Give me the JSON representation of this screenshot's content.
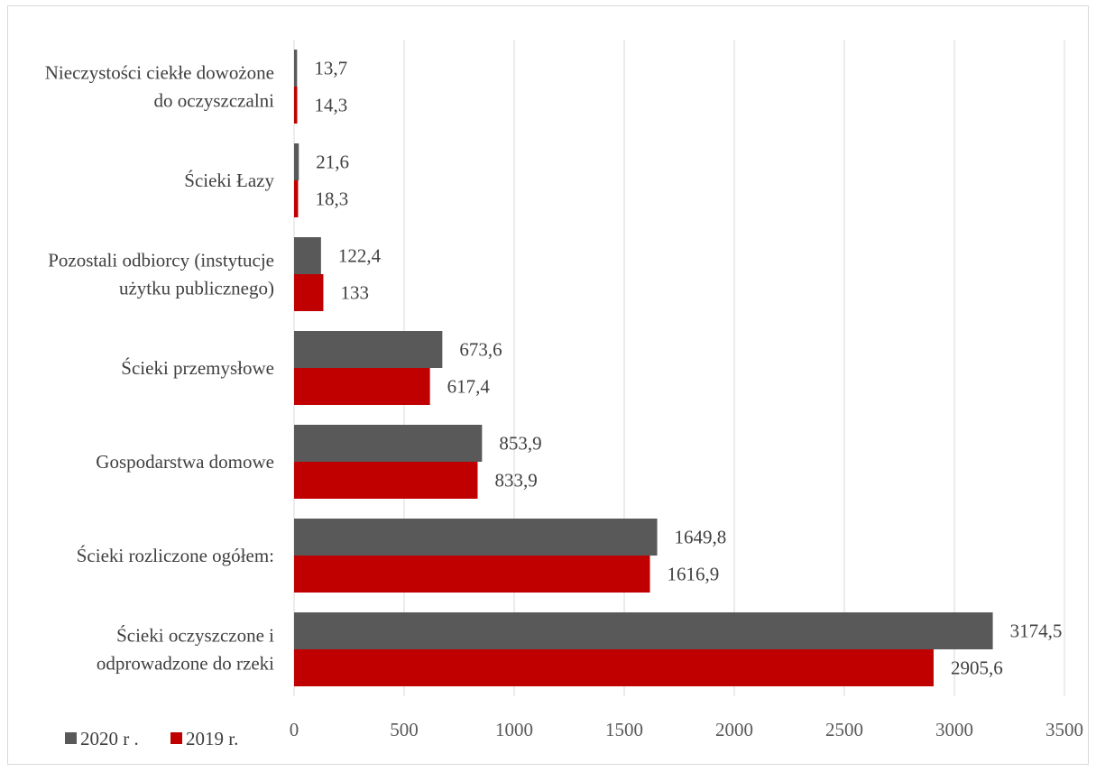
{
  "chart_data": {
    "type": "bar",
    "orientation": "horizontal",
    "categories": [
      [
        "Nieczystości ciekłe dowożone",
        "do oczyszczalni"
      ],
      [
        "Ścieki Łazy"
      ],
      [
        "Pozostali odbiorcy (instytucje",
        "użytku publicznego)"
      ],
      [
        "Ścieki przemysłowe"
      ],
      [
        "Gospodarstwa domowe"
      ],
      [
        "Ścieki rozliczone ogółem:"
      ],
      [
        "Ścieki oczyszczone i",
        "odprowadzone do rzeki"
      ]
    ],
    "series": [
      {
        "name": "2020 r .",
        "color": "#595959",
        "values": [
          13.7,
          21.6,
          122.4,
          673.6,
          853.9,
          1649.8,
          3174.5
        ],
        "labels": [
          "13,7",
          "21,6",
          "122,4",
          "673,6",
          "853,9",
          "1649,8",
          "3174,5"
        ]
      },
      {
        "name": "2019 r.",
        "color": "#c00000",
        "values": [
          14.3,
          18.3,
          133,
          617.4,
          833.9,
          1616.9,
          2905.6
        ],
        "labels": [
          "14,3",
          "18,3",
          "133",
          "617,4",
          "833,9",
          "1616,9",
          "2905,6"
        ]
      }
    ],
    "xlim": [
      0,
      3500
    ],
    "xticks": [
      0,
      500,
      1000,
      1500,
      2000,
      2500,
      3000,
      3500
    ],
    "grid": true,
    "legend": "bottom-left"
  }
}
